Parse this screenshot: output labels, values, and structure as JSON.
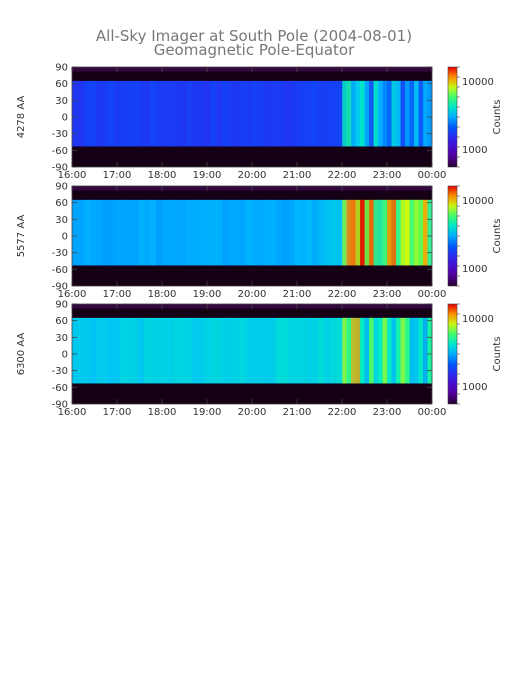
{
  "chart_data": {
    "type": "heatmap",
    "title": "All-Sky Imager at South Pole (2004-08-01)",
    "subtitle": "Geomagnetic Pole-Equator",
    "x_ticks": [
      "16:00",
      "17:00",
      "18:00",
      "19:00",
      "20:00",
      "21:00",
      "22:00",
      "23:00",
      "00:00"
    ],
    "y_ticks": [
      90,
      60,
      30,
      0,
      -30,
      -60,
      -90
    ],
    "ylim": [
      -90,
      90
    ],
    "colorbar": {
      "label": "Counts",
      "tick_labels": [
        "10000",
        "1000"
      ],
      "scale": "log"
    },
    "panels": [
      {
        "ylabel": "4278 AA",
        "valid_range": [
          -53,
          65
        ],
        "level_before_22h": 0.35,
        "level_after_22h": 0.48,
        "intensity_profile": [
          {
            "time": "16:00",
            "level": 0.32
          },
          {
            "time": "17:00",
            "level": 0.34
          },
          {
            "time": "18:00",
            "level": 0.33
          },
          {
            "time": "19:00",
            "level": 0.32
          },
          {
            "time": "20:00",
            "level": 0.33
          },
          {
            "time": "21:00",
            "level": 0.33
          },
          {
            "time": "22:00",
            "level": 0.35
          },
          {
            "time": "22:20",
            "level": 0.58
          },
          {
            "time": "23:00",
            "level": 0.46
          },
          {
            "time": "00:00",
            "level": 0.48
          }
        ]
      },
      {
        "ylabel": "5577 AA",
        "valid_range": [
          -53,
          65
        ],
        "level_before_22h": 0.5,
        "level_after_22h": 0.78,
        "intensity_profile": [
          {
            "time": "16:00",
            "level": 0.48
          },
          {
            "time": "17:00",
            "level": 0.5
          },
          {
            "time": "18:00",
            "level": 0.49
          },
          {
            "time": "19:00",
            "level": 0.49
          },
          {
            "time": "20:00",
            "level": 0.5
          },
          {
            "time": "21:00",
            "level": 0.5
          },
          {
            "time": "22:00",
            "level": 0.55
          },
          {
            "time": "22:20",
            "level": 0.95
          },
          {
            "time": "23:00",
            "level": 0.75
          },
          {
            "time": "00:00",
            "level": 0.8
          }
        ]
      },
      {
        "ylabel": "6300 AA",
        "valid_range": [
          -53,
          65
        ],
        "level_before_22h": 0.56,
        "level_after_22h": 0.62,
        "intensity_profile": [
          {
            "time": "16:00",
            "level": 0.52
          },
          {
            "time": "17:00",
            "level": 0.54
          },
          {
            "time": "18:00",
            "level": 0.55
          },
          {
            "time": "19:00",
            "level": 0.56
          },
          {
            "time": "20:00",
            "level": 0.56
          },
          {
            "time": "21:00",
            "level": 0.57
          },
          {
            "time": "22:00",
            "level": 0.58
          },
          {
            "time": "22:20",
            "level": 0.62
          },
          {
            "time": "23:00",
            "level": 0.62
          },
          {
            "time": "00:00",
            "level": 0.63
          }
        ]
      }
    ]
  }
}
